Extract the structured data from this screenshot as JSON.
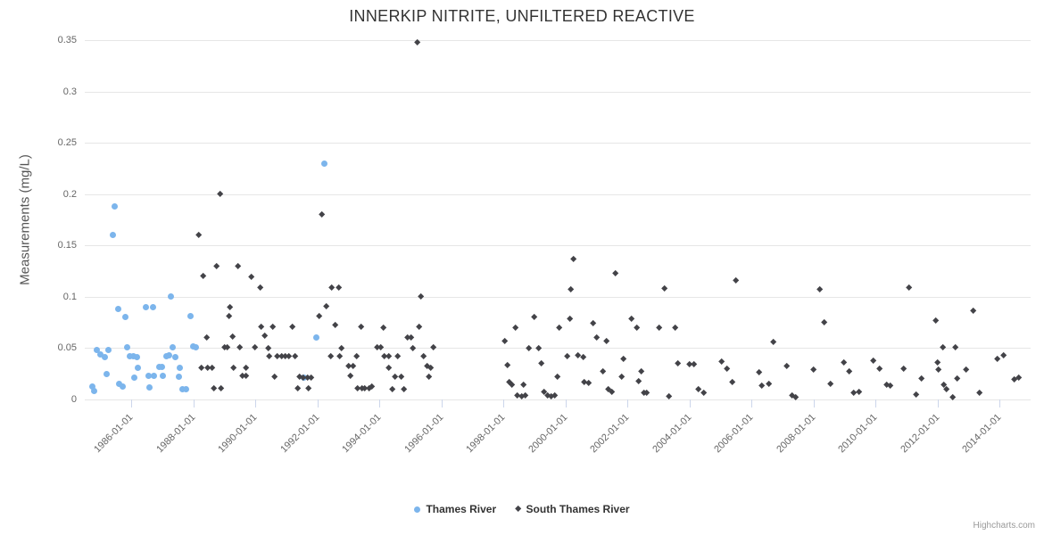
{
  "title": "INNERKIP NITRITE, UNFILTERED REACTIVE",
  "credit": "Highcharts.com",
  "y_axis": {
    "title": "Measurements (mg/L)",
    "ticks": [
      0,
      0.05,
      0.1,
      0.15,
      0.2,
      0.25,
      0.3,
      0.35
    ],
    "tick_labels": [
      "0",
      "0.05",
      "0.1",
      "0.15",
      "0.2",
      "0.25",
      "0.3",
      "0.35"
    ]
  },
  "x_axis": {
    "tick_years": [
      1986,
      1988,
      1990,
      1992,
      1994,
      1996,
      1998,
      2000,
      2002,
      2004,
      2006,
      2008,
      2010,
      2012,
      2014
    ],
    "tick_labels": [
      "1986-01-01",
      "1988-01-01",
      "1990-01-01",
      "1992-01-01",
      "1994-01-01",
      "1996-01-01",
      "1998-01-01",
      "2000-01-01",
      "2002-01-01",
      "2004-01-01",
      "2006-01-01",
      "2008-01-01",
      "2010-01-01",
      "2012-01-01",
      "2014-01-01"
    ]
  },
  "legend": {
    "items": [
      {
        "label": "Thames River",
        "marker": "circle",
        "color": "#7cb5ec"
      },
      {
        "label": "South Thames River",
        "marker": "diamond",
        "color": "#434348"
      }
    ]
  },
  "colors": {
    "grid": "#e6e6e6",
    "axis_line": "#ccd6eb",
    "title_text": "#333333",
    "axis_label_text": "#666666",
    "series_thames": "#7cb5ec",
    "series_south_thames": "#434348"
  },
  "chart_data": {
    "type": "scatter",
    "title": "INNERKIP NITRITE, UNFILTERED REACTIVE",
    "xlabel": "",
    "ylabel": "Measurements (mg/L)",
    "x_unit": "decimal_year",
    "xlim": [
      1984.5,
      2015.0
    ],
    "ylim": [
      0,
      0.35
    ],
    "grid": "horizontal-only",
    "legend_position": "bottom-center",
    "series": [
      {
        "name": "Thames River",
        "marker": "circle",
        "color": "#7cb5ec",
        "points": [
          [
            1984.74,
            0.013
          ],
          [
            1984.8,
            0.008
          ],
          [
            1984.89,
            0.048
          ],
          [
            1985.0,
            0.044
          ],
          [
            1985.14,
            0.041
          ],
          [
            1985.2,
            0.025
          ],
          [
            1985.26,
            0.048
          ],
          [
            1985.4,
            0.16
          ],
          [
            1985.46,
            0.188
          ],
          [
            1985.57,
            0.088
          ],
          [
            1985.6,
            0.015
          ],
          [
            1985.71,
            0.013
          ],
          [
            1985.8,
            0.08
          ],
          [
            1985.86,
            0.051
          ],
          [
            1985.94,
            0.042
          ],
          [
            1986.06,
            0.042
          ],
          [
            1986.09,
            0.021
          ],
          [
            1986.17,
            0.041
          ],
          [
            1986.2,
            0.031
          ],
          [
            1986.46,
            0.09
          ],
          [
            1986.57,
            0.023
          ],
          [
            1986.6,
            0.012
          ],
          [
            1986.69,
            0.09
          ],
          [
            1986.74,
            0.023
          ],
          [
            1986.89,
            0.032
          ],
          [
            1987.0,
            0.032
          ],
          [
            1987.03,
            0.023
          ],
          [
            1987.14,
            0.042
          ],
          [
            1987.23,
            0.043
          ],
          [
            1987.29,
            0.1
          ],
          [
            1987.34,
            0.051
          ],
          [
            1987.43,
            0.041
          ],
          [
            1987.54,
            0.022
          ],
          [
            1987.57,
            0.031
          ],
          [
            1987.66,
            0.01
          ],
          [
            1987.77,
            0.01
          ],
          [
            1987.91,
            0.081
          ],
          [
            1988.0,
            0.052
          ],
          [
            1988.09,
            0.051
          ],
          [
            1991.57,
            0.021
          ],
          [
            1991.97,
            0.06
          ],
          [
            1992.23,
            0.23
          ]
        ]
      },
      {
        "name": "South Thames River",
        "marker": "diamond",
        "color": "#434348",
        "points": [
          [
            1988.17,
            0.16
          ],
          [
            1988.26,
            0.031
          ],
          [
            1988.31,
            0.12
          ],
          [
            1988.43,
            0.06
          ],
          [
            1988.46,
            0.031
          ],
          [
            1988.6,
            0.031
          ],
          [
            1988.66,
            0.011
          ],
          [
            1988.74,
            0.13
          ],
          [
            1988.86,
            0.2
          ],
          [
            1988.89,
            0.011
          ],
          [
            1989.0,
            0.051
          ],
          [
            1989.09,
            0.051
          ],
          [
            1989.14,
            0.081
          ],
          [
            1989.17,
            0.09
          ],
          [
            1989.26,
            0.061
          ],
          [
            1989.31,
            0.031
          ],
          [
            1989.43,
            0.13
          ],
          [
            1989.49,
            0.051
          ],
          [
            1989.57,
            0.023
          ],
          [
            1989.69,
            0.023
          ],
          [
            1989.71,
            0.031
          ],
          [
            1989.86,
            0.119
          ],
          [
            1990.0,
            0.051
          ],
          [
            1990.17,
            0.109
          ],
          [
            1990.2,
            0.071
          ],
          [
            1990.31,
            0.062
          ],
          [
            1990.43,
            0.05
          ],
          [
            1990.46,
            0.042
          ],
          [
            1990.57,
            0.071
          ],
          [
            1990.63,
            0.022
          ],
          [
            1990.71,
            0.042
          ],
          [
            1990.86,
            0.042
          ],
          [
            1990.97,
            0.042
          ],
          [
            1991.09,
            0.042
          ],
          [
            1991.2,
            0.071
          ],
          [
            1991.29,
            0.042
          ],
          [
            1991.37,
            0.011
          ],
          [
            1991.43,
            0.022
          ],
          [
            1991.54,
            0.021
          ],
          [
            1991.69,
            0.021
          ],
          [
            1991.71,
            0.011
          ],
          [
            1991.8,
            0.021
          ],
          [
            1992.06,
            0.081
          ],
          [
            1992.14,
            0.18
          ],
          [
            1992.29,
            0.091
          ],
          [
            1992.43,
            0.042
          ],
          [
            1992.46,
            0.109
          ],
          [
            1992.57,
            0.072
          ],
          [
            1992.69,
            0.109
          ],
          [
            1992.71,
            0.042
          ],
          [
            1992.77,
            0.05
          ],
          [
            1993.0,
            0.032
          ],
          [
            1993.06,
            0.023
          ],
          [
            1993.14,
            0.032
          ],
          [
            1993.26,
            0.042
          ],
          [
            1993.29,
            0.011
          ],
          [
            1993.4,
            0.071
          ],
          [
            1993.43,
            0.011
          ],
          [
            1993.54,
            0.011
          ],
          [
            1993.66,
            0.011
          ],
          [
            1993.77,
            0.012
          ],
          [
            1993.94,
            0.051
          ],
          [
            1994.03,
            0.051
          ],
          [
            1994.14,
            0.07
          ],
          [
            1994.17,
            0.042
          ],
          [
            1994.29,
            0.031
          ],
          [
            1994.31,
            0.042
          ],
          [
            1994.43,
            0.01
          ],
          [
            1994.51,
            0.022
          ],
          [
            1994.6,
            0.042
          ],
          [
            1994.71,
            0.022
          ],
          [
            1994.8,
            0.01
          ],
          [
            1994.91,
            0.06
          ],
          [
            1995.03,
            0.06
          ],
          [
            1995.09,
            0.05
          ],
          [
            1995.23,
            0.348
          ],
          [
            1995.29,
            0.071
          ],
          [
            1995.34,
            0.1
          ],
          [
            1995.43,
            0.042
          ],
          [
            1995.54,
            0.032
          ],
          [
            1995.6,
            0.022
          ],
          [
            1995.66,
            0.031
          ],
          [
            1995.74,
            0.051
          ],
          [
            1998.03,
            0.057
          ],
          [
            1998.14,
            0.033
          ],
          [
            1998.2,
            0.017
          ],
          [
            1998.26,
            0.014
          ],
          [
            1998.4,
            0.07
          ],
          [
            1998.46,
            0.004
          ],
          [
            1998.6,
            0.003
          ],
          [
            1998.66,
            0.014
          ],
          [
            1998.71,
            0.004
          ],
          [
            1998.83,
            0.05
          ],
          [
            1999.0,
            0.08
          ],
          [
            1999.14,
            0.05
          ],
          [
            1999.23,
            0.035
          ],
          [
            1999.31,
            0.007
          ],
          [
            1999.43,
            0.004
          ],
          [
            1999.54,
            0.003
          ],
          [
            1999.66,
            0.004
          ],
          [
            1999.74,
            0.022
          ],
          [
            1999.8,
            0.07
          ],
          [
            2000.06,
            0.042
          ],
          [
            2000.14,
            0.078
          ],
          [
            2000.17,
            0.107
          ],
          [
            2000.26,
            0.137
          ],
          [
            2000.4,
            0.043
          ],
          [
            2000.57,
            0.041
          ],
          [
            2000.6,
            0.017
          ],
          [
            2000.74,
            0.016
          ],
          [
            2000.89,
            0.074
          ],
          [
            2001.0,
            0.06
          ],
          [
            2001.2,
            0.027
          ],
          [
            2001.31,
            0.057
          ],
          [
            2001.37,
            0.01
          ],
          [
            2001.51,
            0.007
          ],
          [
            2001.6,
            0.123
          ],
          [
            2001.8,
            0.022
          ],
          [
            2001.86,
            0.039
          ],
          [
            2002.14,
            0.078
          ],
          [
            2002.31,
            0.07
          ],
          [
            2002.37,
            0.018
          ],
          [
            2002.46,
            0.027
          ],
          [
            2002.54,
            0.006
          ],
          [
            2002.63,
            0.006
          ],
          [
            2003.03,
            0.07
          ],
          [
            2003.2,
            0.108
          ],
          [
            2003.34,
            0.003
          ],
          [
            2003.54,
            0.07
          ],
          [
            2003.63,
            0.035
          ],
          [
            2004.0,
            0.034
          ],
          [
            2004.14,
            0.034
          ],
          [
            2004.29,
            0.01
          ],
          [
            2004.46,
            0.006
          ],
          [
            2005.03,
            0.037
          ],
          [
            2005.2,
            0.03
          ],
          [
            2005.37,
            0.017
          ],
          [
            2005.51,
            0.116
          ],
          [
            2006.23,
            0.026
          ],
          [
            2006.34,
            0.013
          ],
          [
            2006.57,
            0.015
          ],
          [
            2006.71,
            0.056
          ],
          [
            2007.14,
            0.032
          ],
          [
            2007.31,
            0.004
          ],
          [
            2007.43,
            0.002
          ],
          [
            2008.0,
            0.029
          ],
          [
            2008.2,
            0.107
          ],
          [
            2008.34,
            0.075
          ],
          [
            2008.54,
            0.015
          ],
          [
            2008.97,
            0.036
          ],
          [
            2009.14,
            0.027
          ],
          [
            2009.29,
            0.006
          ],
          [
            2009.46,
            0.007
          ],
          [
            2009.94,
            0.038
          ],
          [
            2010.14,
            0.03
          ],
          [
            2010.37,
            0.014
          ],
          [
            2010.46,
            0.013
          ],
          [
            2010.91,
            0.03
          ],
          [
            2011.09,
            0.109
          ],
          [
            2011.31,
            0.005
          ],
          [
            2011.49,
            0.02
          ],
          [
            2011.94,
            0.077
          ],
          [
            2012.0,
            0.036
          ],
          [
            2012.03,
            0.029
          ],
          [
            2012.17,
            0.051
          ],
          [
            2012.2,
            0.014
          ],
          [
            2012.29,
            0.01
          ],
          [
            2012.49,
            0.002
          ],
          [
            2012.57,
            0.051
          ],
          [
            2012.63,
            0.02
          ],
          [
            2012.91,
            0.029
          ],
          [
            2013.14,
            0.086
          ],
          [
            2013.34,
            0.006
          ],
          [
            2013.94,
            0.039
          ],
          [
            2014.14,
            0.043
          ],
          [
            2014.46,
            0.019
          ],
          [
            2014.63,
            0.021
          ]
        ]
      }
    ]
  }
}
